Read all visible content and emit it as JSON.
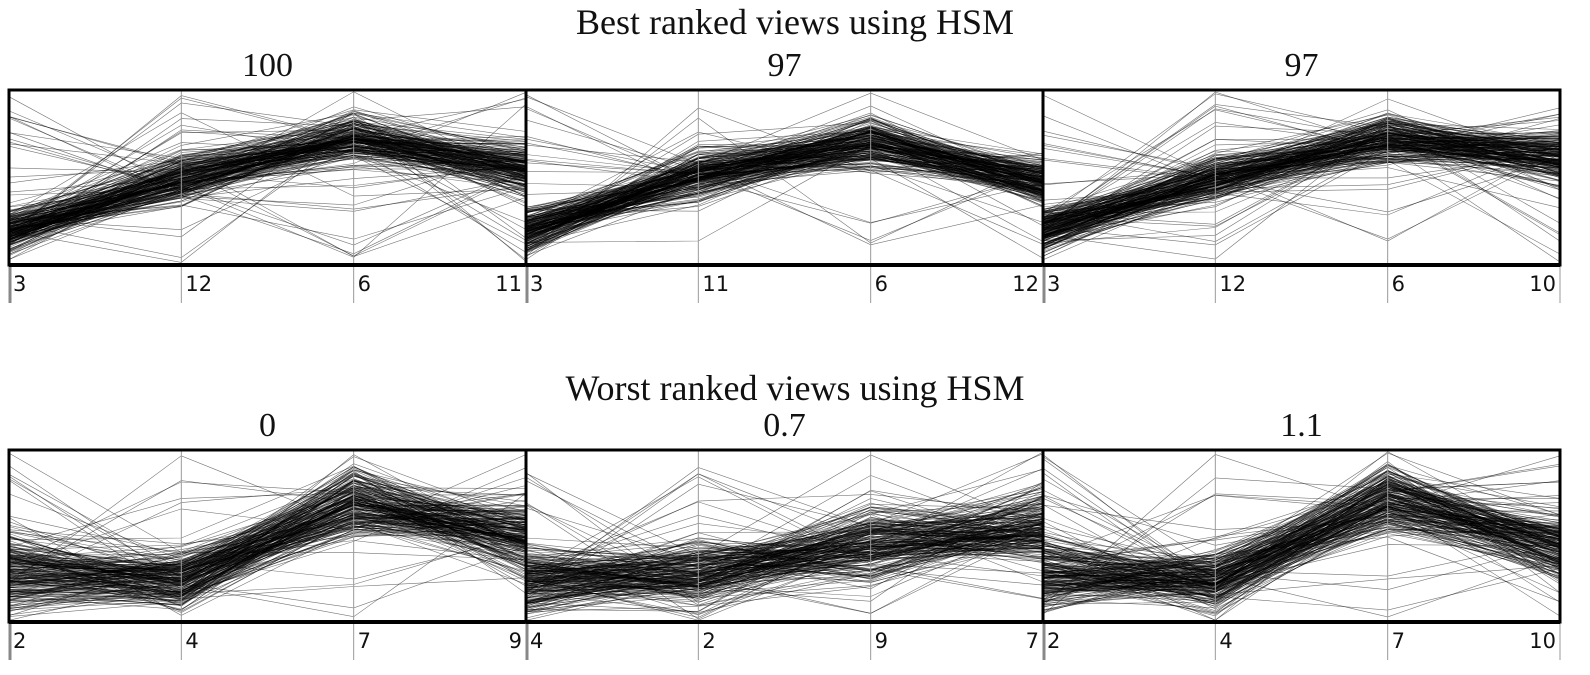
{
  "chart_data": [
    {
      "type": "parallel-coordinates",
      "title": "Best ranked views using HSM",
      "panels": [
        {
          "score": "100",
          "axes": [
            "3",
            "12",
            "6",
            "11"
          ],
          "profile": [
            0.2,
            0.5,
            0.72,
            0.55
          ],
          "spread": [
            0.12,
            0.14,
            0.14,
            0.13
          ]
        },
        {
          "score": "97",
          "axes": [
            "3",
            "11",
            "6",
            "12"
          ],
          "profile": [
            0.2,
            0.52,
            0.7,
            0.48
          ],
          "spread": [
            0.13,
            0.14,
            0.14,
            0.14
          ]
        },
        {
          "score": "97",
          "axes": [
            "3",
            "12",
            "6",
            "10"
          ],
          "profile": [
            0.2,
            0.5,
            0.72,
            0.62
          ],
          "spread": [
            0.12,
            0.13,
            0.14,
            0.15
          ]
        }
      ]
    },
    {
      "type": "parallel-coordinates",
      "title": "Worst ranked views using HSM",
      "panels": [
        {
          "score": "0",
          "axes": [
            "2",
            "4",
            "7",
            "9"
          ],
          "profile": [
            0.28,
            0.25,
            0.7,
            0.5
          ],
          "spread": [
            0.22,
            0.18,
            0.2,
            0.22
          ]
        },
        {
          "score": "0.7",
          "axes": [
            "4",
            "2",
            "9",
            "7"
          ],
          "profile": [
            0.25,
            0.28,
            0.45,
            0.55
          ],
          "spread": [
            0.2,
            0.2,
            0.22,
            0.22
          ]
        },
        {
          "score": "1.1",
          "axes": [
            "2",
            "4",
            "7",
            "10"
          ],
          "profile": [
            0.28,
            0.25,
            0.72,
            0.45
          ],
          "spread": [
            0.22,
            0.18,
            0.2,
            0.2
          ]
        }
      ]
    }
  ]
}
